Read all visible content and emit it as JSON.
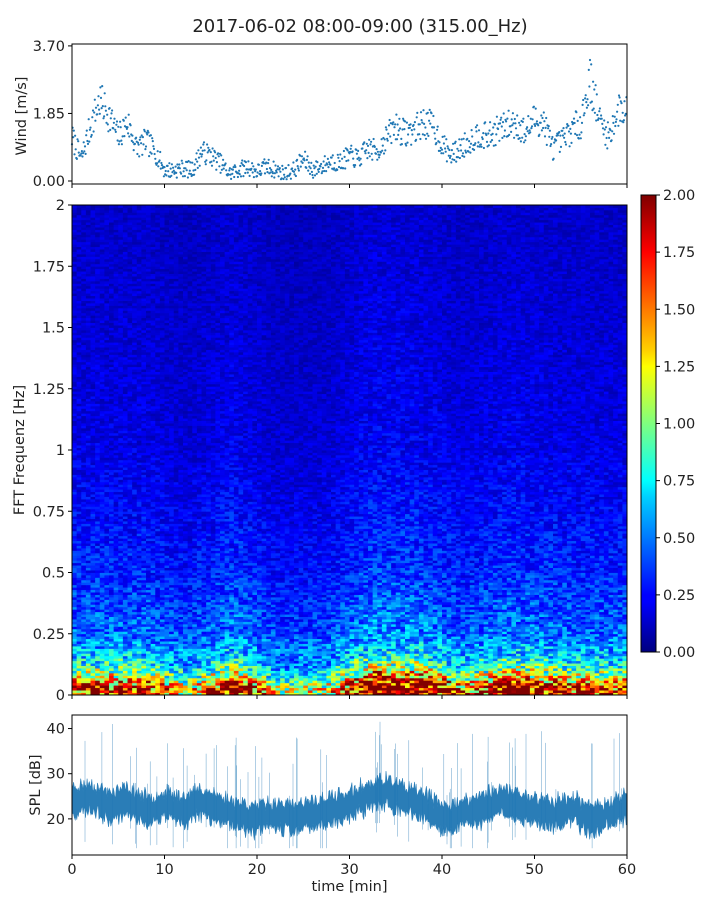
{
  "chart_data": [
    {
      "type": "scatter",
      "title": "2017-06-02 08:00-09:00 (315.00_Hz)",
      "ylabel": "Wind [m/s]",
      "ylim": [
        0,
        3.7
      ],
      "xlim": [
        0,
        60
      ],
      "yticks": [
        "0.00",
        "1.85",
        "3.70"
      ],
      "color": "#1f77b4",
      "x": [
        0,
        1,
        2,
        3,
        4,
        5,
        6,
        7,
        8,
        9,
        10,
        11,
        12,
        13,
        14,
        15,
        16,
        17,
        18,
        19,
        20,
        21,
        22,
        23,
        24,
        25,
        26,
        27,
        28,
        29,
        30,
        31,
        32,
        33,
        34,
        35,
        36,
        37,
        38,
        39,
        40,
        41,
        42,
        43,
        44,
        45,
        46,
        47,
        48,
        49,
        50,
        51,
        52,
        53,
        54,
        55,
        56,
        57,
        58,
        59,
        60
      ],
      "y": [
        1.2,
        0.6,
        1.5,
        2.2,
        1.8,
        1.2,
        1.6,
        0.9,
        1.1,
        0.8,
        0.3,
        0.3,
        0.35,
        0.3,
        0.8,
        0.7,
        0.5,
        0.2,
        0.3,
        0.4,
        0.25,
        0.4,
        0.3,
        0.2,
        0.3,
        0.6,
        0.3,
        0.4,
        0.55,
        0.5,
        0.7,
        0.6,
        0.9,
        0.8,
        1.2,
        1.5,
        1.3,
        1.4,
        1.6,
        1.5,
        1.0,
        0.7,
        0.9,
        1.1,
        1.3,
        1.2,
        1.4,
        1.5,
        1.6,
        1.3,
        1.7,
        1.6,
        0.9,
        1.1,
        1.4,
        1.6,
        2.8,
        1.7,
        1.2,
        1.9,
        2.0
      ]
    },
    {
      "type": "heatmap",
      "ylabel": "FFT Frequenz [Hz]",
      "ylim": [
        0,
        2
      ],
      "xlim": [
        0,
        60
      ],
      "yticks": [
        "0",
        "0.25",
        "0.5",
        "0.75",
        "1",
        "1.25",
        "1.5",
        "1.75",
        "2"
      ],
      "colorbar": {
        "min": 0,
        "max": 2,
        "ticks": [
          "0.00",
          "0.25",
          "0.50",
          "0.75",
          "1.00",
          "1.25",
          "1.50",
          "1.75",
          "2.00"
        ],
        "colormap": "jet"
      },
      "x_segments": [
        0,
        5,
        10,
        15,
        20,
        25,
        30,
        35,
        40,
        45,
        50,
        55,
        60
      ],
      "freq_bins": [
        0.025,
        0.075,
        0.125,
        0.25,
        0.5,
        0.75,
        1.0,
        1.5,
        2.0
      ],
      "level_profile": [
        2.0,
        1.3,
        0.85,
        0.55,
        0.38,
        0.3,
        0.24,
        0.2,
        0.17
      ],
      "time_profile": [
        1.1,
        1.1,
        0.9,
        1.2,
        0.85,
        0.9,
        1.3,
        1.25,
        1.0,
        1.2,
        1.1,
        1.05
      ]
    },
    {
      "type": "area",
      "ylabel": "SPL [dB]",
      "xlabel": "time [min]",
      "ylim": [
        12,
        43
      ],
      "xlim": [
        0,
        60
      ],
      "yticks": [
        "20",
        "30",
        "40"
      ],
      "xticks": [
        "0",
        "10",
        "20",
        "30",
        "40",
        "50",
        "60"
      ],
      "color": "#1f77b4",
      "x": [
        0,
        2,
        4,
        6,
        8,
        10,
        12,
        14,
        16,
        18,
        20,
        22,
        24,
        26,
        28,
        30,
        32,
        34,
        36,
        38,
        40,
        42,
        44,
        46,
        48,
        50,
        52,
        54,
        56,
        58,
        60
      ],
      "y_center": [
        24,
        25,
        23,
        24,
        22,
        23,
        22,
        24,
        22,
        21,
        20,
        21,
        20,
        21,
        22,
        23,
        25,
        26,
        24,
        23,
        20,
        21,
        22,
        24,
        23,
        22,
        21,
        22,
        20,
        21,
        23
      ],
      "y_spread": [
        3,
        3,
        3,
        3,
        3,
        3,
        3,
        3,
        3,
        3,
        3,
        3,
        3,
        3,
        3,
        3,
        3,
        3,
        3,
        3,
        3,
        3,
        3,
        3,
        3,
        3,
        3,
        3,
        3,
        3,
        3
      ]
    }
  ]
}
